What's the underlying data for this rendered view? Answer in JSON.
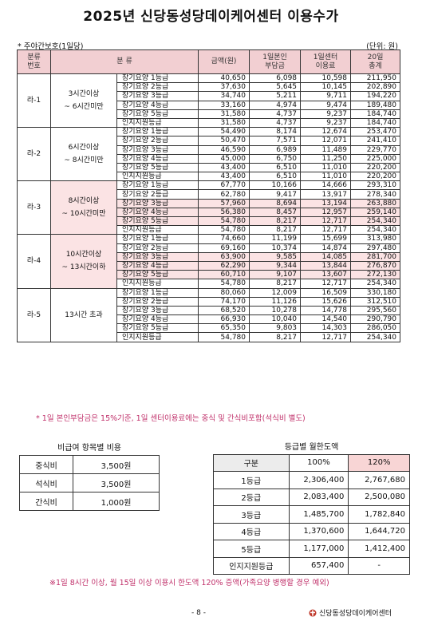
{
  "title": "2025년 신당동성당데이케어센터 이용수가",
  "subhead_left": "* 주야간보호(1일당)",
  "subhead_right": "(단위: 원)",
  "headers": {
    "code": "분류\n번호",
    "category": "분 류",
    "amount": "금액(원)",
    "copay": "1일본인\n부담금",
    "center_fee": "1일센터\n이용료",
    "total": "20일\n총계"
  },
  "groups": [
    {
      "code": "라-1",
      "hours": "3시간이상\n~ 6시간미만",
      "rows": [
        {
          "name": "장기요양 1등급",
          "amount": "40,650",
          "copay": "6,098",
          "fee": "10,598",
          "total": "211,950"
        },
        {
          "name": "장기요양 2등급",
          "amount": "37,630",
          "copay": "5,645",
          "fee": "10,145",
          "total": "202,890"
        },
        {
          "name": "장기요양 3등급",
          "amount": "34,740",
          "copay": "5,211",
          "fee": "9,711",
          "total": "194,220"
        },
        {
          "name": "장기요양 4등급",
          "amount": "33,160",
          "copay": "4,974",
          "fee": "9,474",
          "total": "189,480"
        },
        {
          "name": "장기요양 5등급",
          "amount": "31,580",
          "copay": "4,737",
          "fee": "9,237",
          "total": "184,740"
        },
        {
          "name": "인지지원등급",
          "amount": "31,580",
          "copay": "4,737",
          "fee": "9,237",
          "total": "184,740"
        }
      ]
    },
    {
      "code": "라-2",
      "hours": "6시간이상\n~ 8시간미만",
      "rows": [
        {
          "name": "장기요양 1등급",
          "amount": "54,490",
          "copay": "8,174",
          "fee": "12,674",
          "total": "253,470"
        },
        {
          "name": "장기요양 2등급",
          "amount": "50,470",
          "copay": "7,571",
          "fee": "12,071",
          "total": "241,410"
        },
        {
          "name": "장기요양 3등급",
          "amount": "46,590",
          "copay": "6,989",
          "fee": "11,489",
          "total": "229,770"
        },
        {
          "name": "장기요양 4등급",
          "amount": "45,000",
          "copay": "6,750",
          "fee": "11,250",
          "total": "225,000"
        },
        {
          "name": "장기요양 5등급",
          "amount": "43,400",
          "copay": "6,510",
          "fee": "11,010",
          "total": "220,200"
        },
        {
          "name": "인지지원등급",
          "amount": "43,400",
          "copay": "6,510",
          "fee": "11,010",
          "total": "220,200"
        }
      ]
    },
    {
      "code": "라-3",
      "hours": "8시간이상\n~ 10시간미만",
      "rows": [
        {
          "name": "장기요양 1등급",
          "amount": "67,770",
          "copay": "10,166",
          "fee": "14,666",
          "total": "293,310"
        },
        {
          "name": "장기요양 2등급",
          "amount": "62,780",
          "copay": "9,417",
          "fee": "13,917",
          "total": "278,340"
        },
        {
          "name": "장기요양 3등급",
          "amount": "57,960",
          "copay": "8,694",
          "fee": "13,194",
          "total": "263,880"
        },
        {
          "name": "장기요양 4등급",
          "amount": "56,380",
          "copay": "8,457",
          "fee": "12,957",
          "total": "259,140"
        },
        {
          "name": "장기요양 5등급",
          "amount": "54,780",
          "copay": "8,217",
          "fee": "12,717",
          "total": "254,340"
        },
        {
          "name": "인지지원등급",
          "amount": "54,780",
          "copay": "8,217",
          "fee": "12,717",
          "total": "254,340"
        }
      ]
    },
    {
      "code": "라-4",
      "hours": "10시간이상\n~ 13시간이하",
      "rows": [
        {
          "name": "장기요양 1등급",
          "amount": "74,660",
          "copay": "11,199",
          "fee": "15,699",
          "total": "313,980"
        },
        {
          "name": "장기요양 2등급",
          "amount": "69,160",
          "copay": "10,374",
          "fee": "14,874",
          "total": "297,480"
        },
        {
          "name": "장기요양 3등급",
          "amount": "63,900",
          "copay": "9,585",
          "fee": "14,085",
          "total": "281,700"
        },
        {
          "name": "장기요양 4등급",
          "amount": "62,290",
          "copay": "9,344",
          "fee": "13,844",
          "total": "276,870"
        },
        {
          "name": "장기요양 5등급",
          "amount": "60,710",
          "copay": "9,107",
          "fee": "13,607",
          "total": "272,130"
        },
        {
          "name": "인지지원등급",
          "amount": "54,780",
          "copay": "8,217",
          "fee": "12,717",
          "total": "254,340"
        }
      ]
    },
    {
      "code": "라-5",
      "hours": "13시간 초과",
      "rows": [
        {
          "name": "장기요양 1등급",
          "amount": "80,060",
          "copay": "12,009",
          "fee": "16,509",
          "total": "330,180"
        },
        {
          "name": "장기요양 2등급",
          "amount": "74,170",
          "copay": "11,126",
          "fee": "15,626",
          "total": "312,510"
        },
        {
          "name": "장기요양 3등급",
          "amount": "68,520",
          "copay": "10,278",
          "fee": "14,778",
          "total": "295,560"
        },
        {
          "name": "장기요양 4등급",
          "amount": "66,930",
          "copay": "10,040",
          "fee": "14,540",
          "total": "290,790"
        },
        {
          "name": "장기요양 5등급",
          "amount": "65,350",
          "copay": "9,803",
          "fee": "14,303",
          "total": "286,050"
        },
        {
          "name": "인지지원등급",
          "amount": "54,780",
          "copay": "8,217",
          "fee": "12,717",
          "total": "254,340"
        }
      ]
    }
  ],
  "note1": "* 1일 본인부담금은 15%기준, 1일 센터이용료에는 중식 및 간식비포함(석식비 별도)",
  "nonpay": {
    "title": "비급여 항목별 비용",
    "rows": [
      {
        "label": "중식비",
        "value": "3,500원"
      },
      {
        "label": "석식비",
        "value": "3,500원"
      },
      {
        "label": "간식비",
        "value": "1,000원"
      }
    ]
  },
  "limit": {
    "title": "등급별 월한도액",
    "headers": [
      "구분",
      "100%",
      "120%"
    ],
    "rows": [
      {
        "grade": "1등급",
        "p100": "2,306,400",
        "p120": "2,767,680"
      },
      {
        "grade": "2등급",
        "p100": "2,083,400",
        "p120": "2,500,080"
      },
      {
        "grade": "3등급",
        "p100": "1,485,700",
        "p120": "1,782,840"
      },
      {
        "grade": "4등급",
        "p100": "1,370,600",
        "p120": "1,644,720"
      },
      {
        "grade": "5등급",
        "p100": "1,177,000",
        "p120": "1,412,400"
      },
      {
        "grade": "인지지원등급",
        "p100": "657,400",
        "p120": "-"
      }
    ]
  },
  "note2": "※1일 8시간 이상, 월 15일 이상 이용시 한도액 120% 증액(가족요양 병행할 경우 예외)",
  "page_number": "- 8 -",
  "footer_logo": "신당동성당데이케어센터",
  "colors": {
    "header_pink": "#f2cfd2",
    "highlight_pink": "#fbe3e4",
    "note_magenta": "#c0306a",
    "logo_red": "#c0392b"
  }
}
